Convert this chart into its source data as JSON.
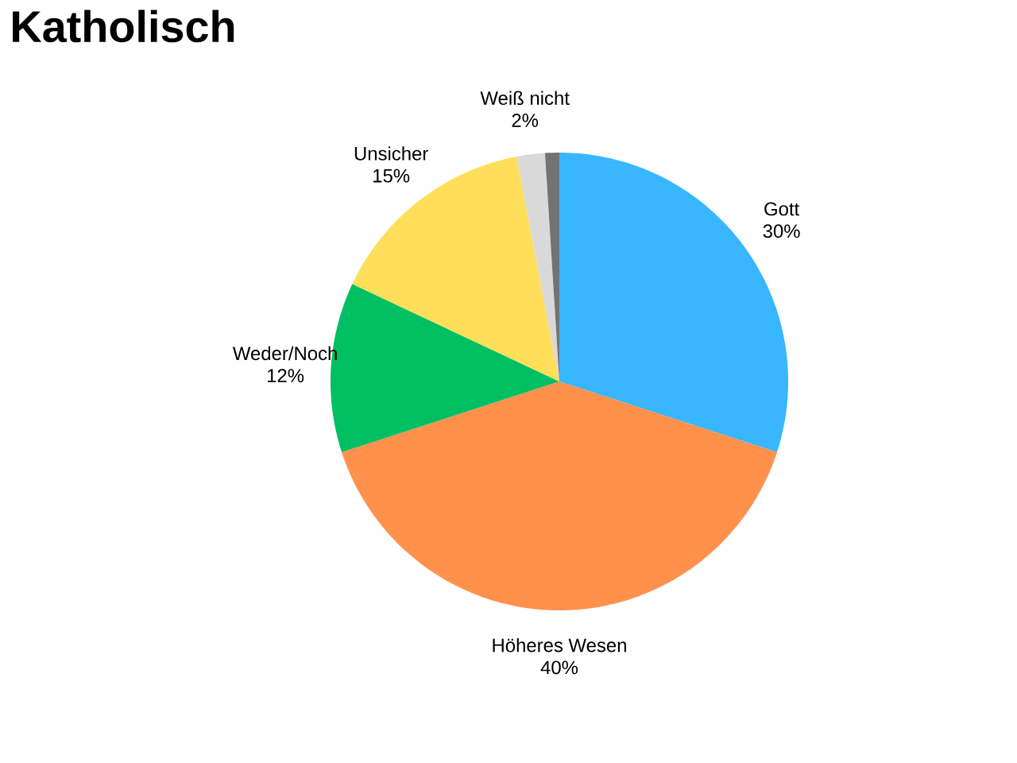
{
  "chart_data": {
    "type": "pie",
    "title": "Katholisch",
    "categories": [
      "Gott",
      "Höheres Wesen",
      "Weder/Noch",
      "Unsicher",
      "Weiß nicht",
      null
    ],
    "values": [
      30,
      40,
      12,
      15,
      2,
      1
    ],
    "value_labels": [
      "30%",
      "40%",
      "12%",
      "15%",
      "2%",
      null
    ],
    "colors": [
      "#38b6ff",
      "#ff914d",
      "#00bf63",
      "#ffde59",
      "#d9d9d9",
      "#737373"
    ]
  }
}
